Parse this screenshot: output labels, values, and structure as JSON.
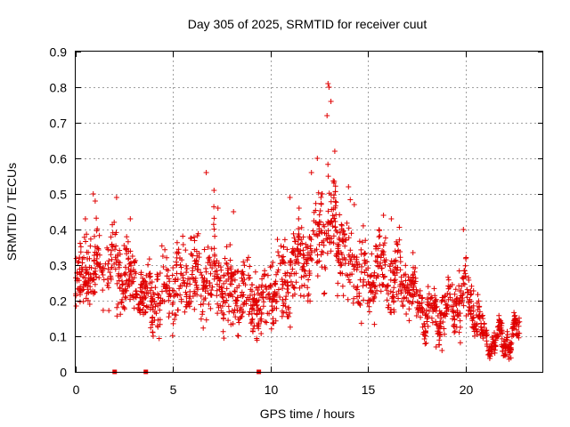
{
  "chart_data": {
    "type": "scatter",
    "title": "Day 305 of 2025, SRMTID for receiver cuut",
    "xlabel": "GPS time / hours",
    "ylabel": "SRMTID / TECUs",
    "xlim": [
      0,
      24
    ],
    "ylim": [
      0,
      0.9
    ],
    "xticks": [
      0,
      5,
      10,
      15,
      20
    ],
    "yticks": [
      0,
      0.1,
      0.2,
      0.3,
      0.4,
      0.5,
      0.6,
      0.7,
      0.8,
      0.9
    ],
    "xtick_labels": [
      "0",
      "5",
      "10",
      "15",
      "20"
    ],
    "ytick_labels": [
      "0",
      "0.1",
      "0.2",
      "0.3",
      "0.4",
      "0.5",
      "0.6",
      "0.7",
      "0.8",
      "0.9"
    ],
    "grid": true,
    "marker_color": "#e00000",
    "marker": "plus",
    "baseline_markers_x": [
      2.0,
      3.6,
      9.4
    ],
    "envelope": {
      "x": [
        0,
        0.5,
        1,
        1.5,
        2,
        2.5,
        3,
        3.5,
        4,
        4.5,
        5,
        5.5,
        6,
        6.5,
        7,
        7.5,
        8,
        8.5,
        9,
        9.5,
        10,
        10.5,
        11,
        11.5,
        12,
        12.5,
        13,
        13.5,
        14,
        14.5,
        15,
        15.5,
        16,
        16.5,
        17,
        17.5,
        18,
        18.5,
        19,
        19.5,
        20,
        20.5,
        21,
        21.5,
        22,
        22.5,
        22.8
      ],
      "y_center": [
        0.25,
        0.28,
        0.3,
        0.28,
        0.3,
        0.27,
        0.25,
        0.2,
        0.2,
        0.22,
        0.23,
        0.27,
        0.27,
        0.25,
        0.28,
        0.25,
        0.24,
        0.22,
        0.2,
        0.18,
        0.23,
        0.25,
        0.27,
        0.3,
        0.33,
        0.4,
        0.45,
        0.38,
        0.32,
        0.27,
        0.25,
        0.3,
        0.27,
        0.26,
        0.25,
        0.2,
        0.17,
        0.16,
        0.18,
        0.2,
        0.22,
        0.18,
        0.09,
        0.09,
        0.09,
        0.1,
        0.12
      ],
      "y_spread": [
        0.08,
        0.1,
        0.1,
        0.09,
        0.1,
        0.1,
        0.08,
        0.05,
        0.08,
        0.09,
        0.1,
        0.1,
        0.1,
        0.09,
        0.1,
        0.09,
        0.09,
        0.09,
        0.08,
        0.07,
        0.09,
        0.09,
        0.1,
        0.1,
        0.1,
        0.12,
        0.14,
        0.12,
        0.11,
        0.1,
        0.09,
        0.1,
        0.09,
        0.08,
        0.08,
        0.06,
        0.05,
        0.05,
        0.06,
        0.07,
        0.08,
        0.06,
        0.03,
        0.03,
        0.03,
        0.03,
        0.03
      ]
    },
    "point_count": 1900,
    "outliers": {
      "x": [
        0.5,
        0.9,
        1.0,
        2.1,
        2.8,
        6.7,
        7.1,
        7.3,
        8.1,
        11.0,
        12.1,
        12.4,
        12.9,
        12.95,
        13.0,
        13.1,
        13.3,
        14.0,
        14.3,
        15.8,
        16.2,
        19.9,
        18.8,
        18.5
      ],
      "y": [
        0.43,
        0.5,
        0.48,
        0.49,
        0.43,
        0.56,
        0.51,
        0.46,
        0.45,
        0.49,
        0.56,
        0.6,
        0.72,
        0.81,
        0.8,
        0.76,
        0.62,
        0.52,
        0.47,
        0.44,
        0.43,
        0.4,
        0.06,
        0.07
      ]
    }
  }
}
